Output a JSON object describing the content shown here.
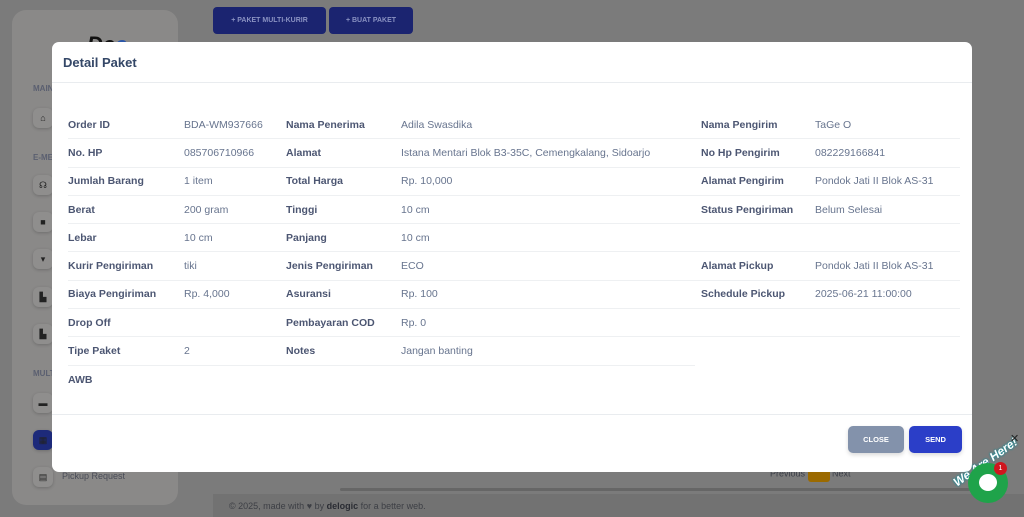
{
  "sidebar": {
    "logo": "Dee",
    "sections": [
      "MAIN",
      "E-ME",
      "MULT"
    ],
    "items": [
      {
        "label": "Pickup Request",
        "icon": "inbox-icon"
      }
    ]
  },
  "toolbar": {
    "multi_kurir": "+ PAKET MULTI-KURIR",
    "buat_paket": "+ BUAT PAKET"
  },
  "footer": {
    "pre": "© 2025, made with",
    "heart": "♥",
    "by": "by",
    "brand": "delogic",
    "post": "for a better web."
  },
  "pager": {
    "prev": "Previous",
    "next": "Next"
  },
  "modal": {
    "title": "Detail Paket",
    "rows": [
      {
        "l1": "Order ID",
        "v1": "BDA-WM937666",
        "l2": "Nama Penerima",
        "v2": "Adila Swasdika",
        "l3": "Nama Pengirim",
        "v3": "TaGe O"
      },
      {
        "l1": "No. HP",
        "v1": "085706710966",
        "l2": "Alamat",
        "v2": "Istana Mentari Blok B3-35C, Cemengkalang, Sidoarjo",
        "l3": "No Hp Pengirim",
        "v3": "082229166841"
      },
      {
        "l1": "Jumlah Barang",
        "v1": "1 item",
        "l2": "Total Harga",
        "v2": "Rp. 10,000",
        "l3": "Alamat Pengirim",
        "v3": "Pondok Jati II Blok AS-31"
      },
      {
        "l1": "Berat",
        "v1": "200 gram",
        "l2": "Tinggi",
        "v2": "10 cm",
        "l3": "Status Pengiriman",
        "v3": "Belum Selesai"
      },
      {
        "l1": "Lebar",
        "v1": "10 cm",
        "l2": "Panjang",
        "v2": "10 cm",
        "l3": "",
        "v3": ""
      },
      {
        "l1": "Kurir Pengiriman",
        "v1": "tiki",
        "l2": "Jenis Pengiriman",
        "v2": "ECO",
        "l3": "Alamat Pickup",
        "v3": "Pondok Jati II Blok AS-31"
      },
      {
        "l1": "Biaya Pengiriman",
        "v1": "Rp. 4,000",
        "l2": "Asuransi",
        "v2": "Rp. 100",
        "l3": "Schedule Pickup",
        "v3": "2025-06-21 11:00:00"
      },
      {
        "l1": "Drop Off",
        "v1": "",
        "l2": "Pembayaran COD",
        "v2": "Rp. 0",
        "l3": "",
        "v3": ""
      },
      {
        "l1": "Tipe Paket",
        "v1": "2",
        "l2": "Notes",
        "v2": "Jangan banting",
        "l3": "",
        "v3": ""
      },
      {
        "l1": "AWB",
        "v1": "",
        "l2": "",
        "v2": "",
        "l3": "",
        "v3": ""
      }
    ],
    "close": "CLOSE",
    "send": "SEND"
  },
  "chat": {
    "label": "We Are Here!",
    "badge": "1",
    "close": "✕"
  }
}
